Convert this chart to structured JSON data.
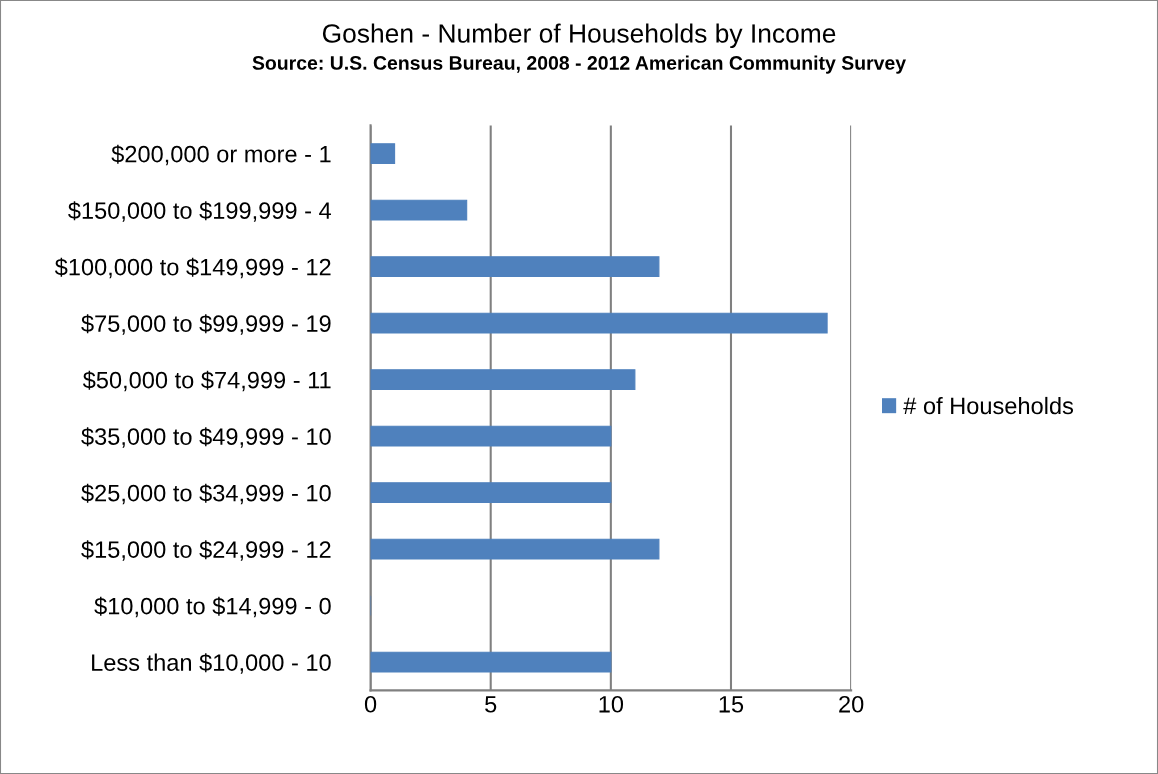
{
  "chart_data": {
    "type": "bar",
    "orientation": "horizontal",
    "title": "Goshen - Number of Households by Income",
    "subtitle": "Source: U.S. Census Bureau, 2008 - 2012 American Community Survey",
    "categories": [
      "$200,000 or more - 1",
      "$150,000 to $199,999 - 4",
      "$100,000 to $149,999 - 12",
      "$75,000 to $99,999 - 19",
      "$50,000 to $74,999 - 11",
      "$35,000 to $49,999 - 10",
      "$25,000 to $34,999 - 10",
      "$15,000 to $24,999 - 12",
      "$10,000 to $14,999 - 0",
      "Less than $10,000 - 10"
    ],
    "series": [
      {
        "name": "# of Households",
        "color": "#4f81bd",
        "values": [
          1,
          4,
          12,
          19,
          11,
          10,
          10,
          12,
          0,
          10
        ]
      }
    ],
    "xlim": [
      0,
      20
    ],
    "xticks": [
      0,
      5,
      10,
      15,
      20
    ],
    "grid": "x",
    "legend": "right"
  }
}
